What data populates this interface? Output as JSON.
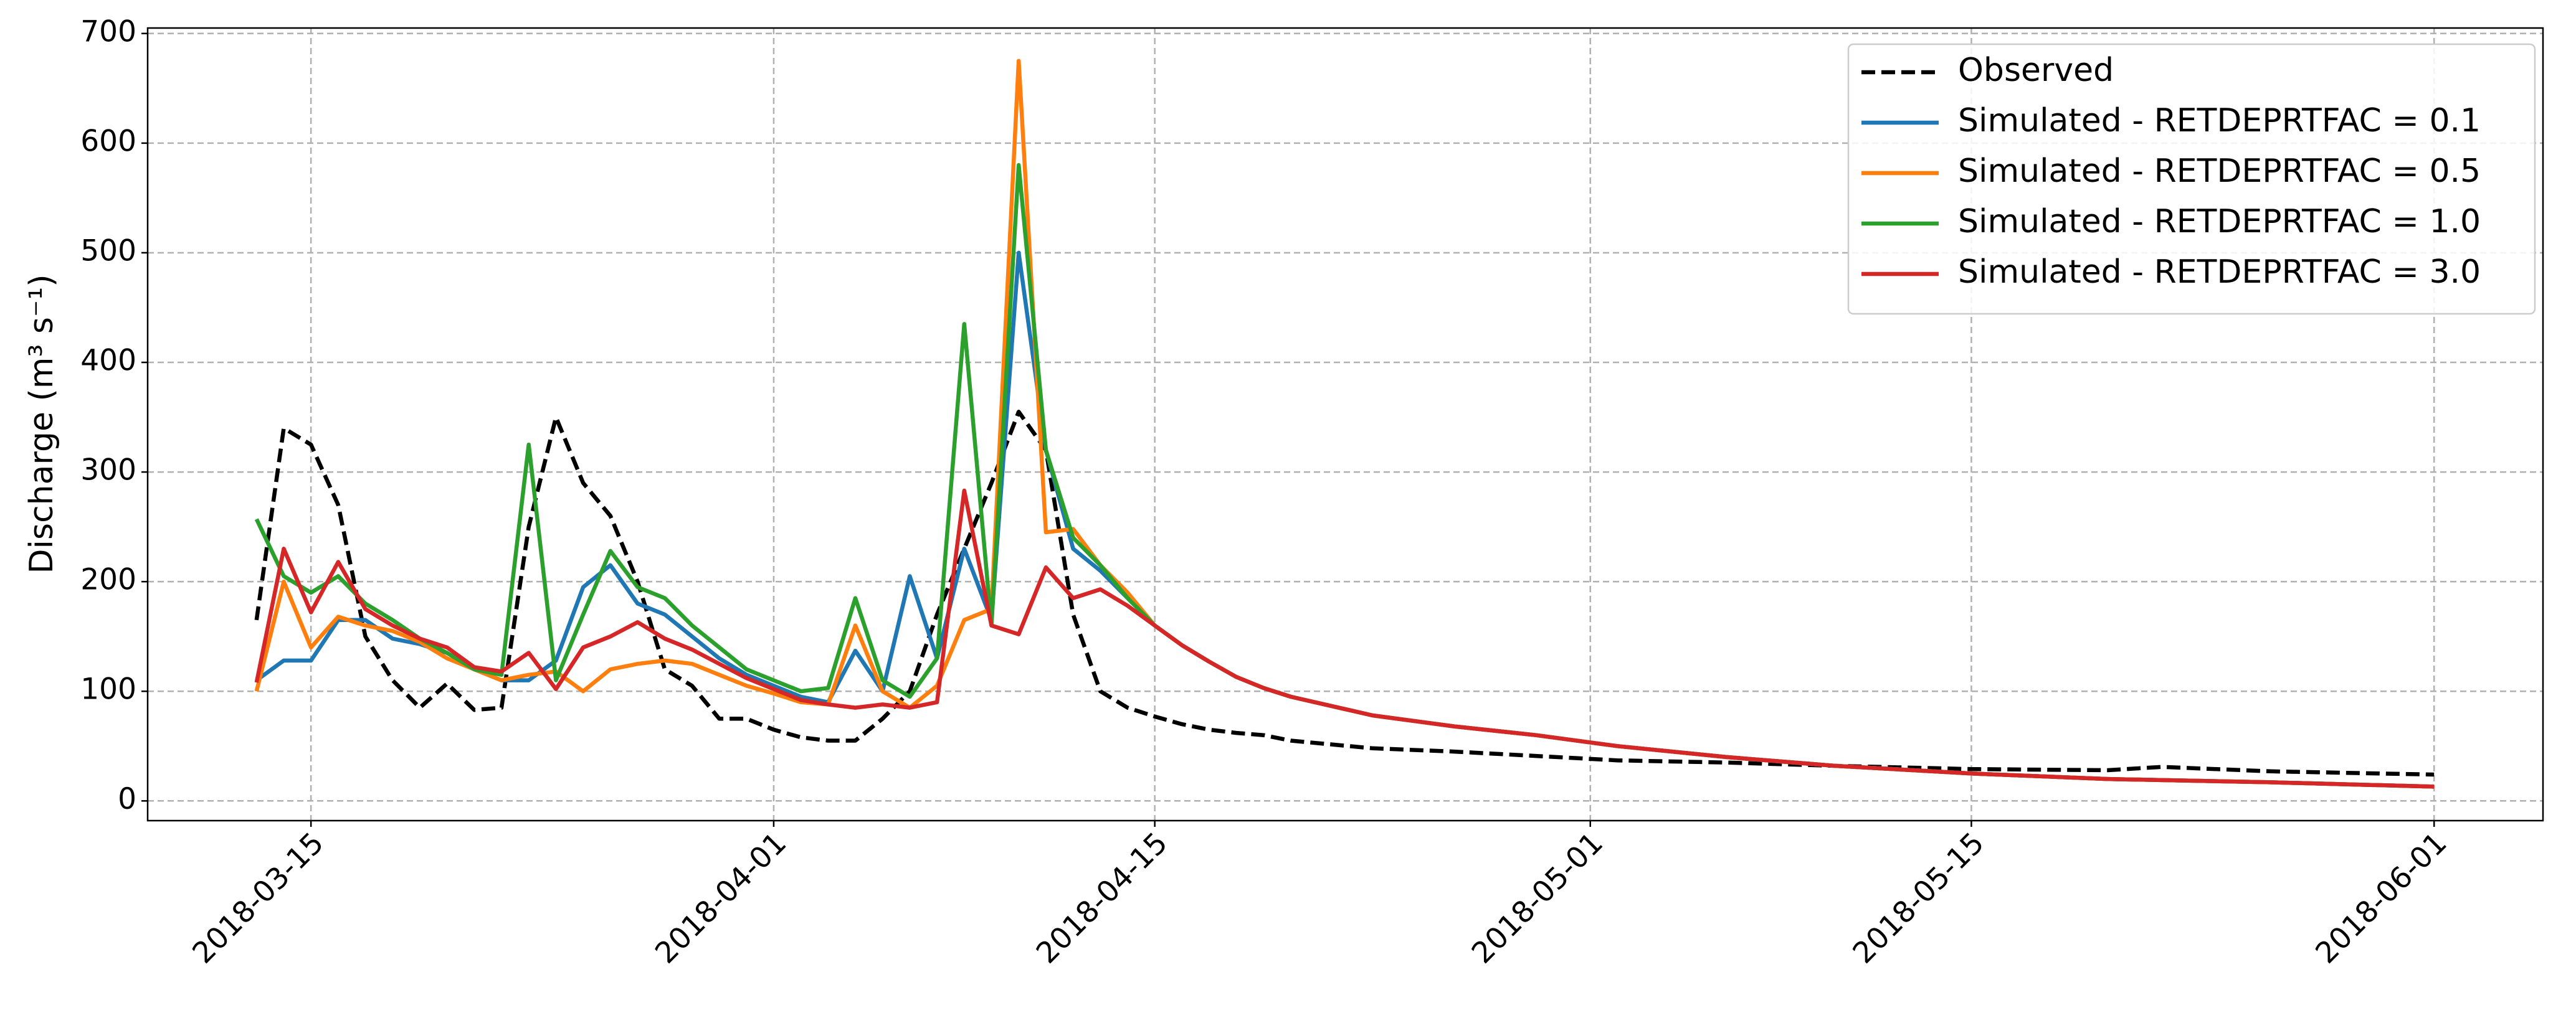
{
  "chart_data": {
    "type": "line",
    "y_label": "Discharge (m³ s⁻¹)",
    "x": [
      "2018-03-13",
      "2018-03-14",
      "2018-03-15",
      "2018-03-16",
      "2018-03-17",
      "2018-03-18",
      "2018-03-19",
      "2018-03-20",
      "2018-03-21",
      "2018-03-22",
      "2018-03-23",
      "2018-03-24",
      "2018-03-25",
      "2018-03-26",
      "2018-03-27",
      "2018-03-28",
      "2018-03-29",
      "2018-03-30",
      "2018-03-31",
      "2018-04-01",
      "2018-04-02",
      "2018-04-03",
      "2018-04-04",
      "2018-04-05",
      "2018-04-06",
      "2018-04-07",
      "2018-04-08",
      "2018-04-09",
      "2018-04-10",
      "2018-04-11",
      "2018-04-12",
      "2018-04-13",
      "2018-04-14",
      "2018-04-15",
      "2018-04-16",
      "2018-04-17",
      "2018-04-18",
      "2018-04-19",
      "2018-04-20",
      "2018-04-23",
      "2018-04-26",
      "2018-04-29",
      "2018-05-02",
      "2018-05-06",
      "2018-05-10",
      "2018-05-15",
      "2018-05-20",
      "2018-05-22",
      "2018-05-26",
      "2018-06-01"
    ],
    "series": [
      {
        "name": "Observed",
        "color": "#000000",
        "linestyle": "dashed",
        "values": [
          165,
          340,
          325,
          270,
          150,
          110,
          85,
          107,
          83,
          85,
          250,
          350,
          290,
          260,
          200,
          120,
          105,
          75,
          75,
          65,
          58,
          55,
          55,
          75,
          100,
          170,
          230,
          290,
          355,
          320,
          170,
          100,
          85,
          77,
          70,
          65,
          62,
          60,
          55,
          48,
          45,
          41,
          37,
          35,
          32,
          29,
          28,
          31,
          27,
          24
        ]
      },
      {
        "name": "Simulated - RETDEPRTFAC = 0.1",
        "color": "#1f77b4",
        "linestyle": "solid",
        "values": [
          110,
          128,
          128,
          165,
          165,
          148,
          143,
          135,
          120,
          110,
          110,
          128,
          195,
          215,
          180,
          170,
          150,
          130,
          115,
          105,
          95,
          90,
          137,
          100,
          205,
          130,
          230,
          165,
          500,
          320,
          230,
          210,
          185,
          160,
          142,
          127,
          113,
          103,
          95,
          78,
          68,
          60,
          50,
          40,
          32,
          25,
          20,
          19,
          17,
          13
        ]
      },
      {
        "name": "Simulated - RETDEPRTFAC = 0.5",
        "color": "#ff7f0e",
        "linestyle": "solid",
        "values": [
          100,
          200,
          140,
          168,
          160,
          155,
          145,
          130,
          120,
          110,
          115,
          118,
          100,
          120,
          125,
          128,
          125,
          115,
          105,
          98,
          90,
          88,
          160,
          100,
          85,
          105,
          165,
          175,
          675,
          245,
          248,
          215,
          190,
          160,
          142,
          127,
          113,
          103,
          95,
          78,
          68,
          60,
          50,
          40,
          32,
          25,
          20,
          19,
          17,
          13
        ]
      },
      {
        "name": "Simulated - RETDEPRTFAC = 1.0",
        "color": "#2ca02c",
        "linestyle": "solid",
        "values": [
          257,
          205,
          190,
          205,
          180,
          165,
          148,
          135,
          120,
          115,
          325,
          110,
          170,
          228,
          195,
          185,
          160,
          140,
          120,
          110,
          100,
          103,
          185,
          110,
          95,
          130,
          435,
          160,
          580,
          320,
          240,
          215,
          185,
          160,
          142,
          127,
          113,
          103,
          95,
          78,
          68,
          60,
          50,
          40,
          32,
          25,
          20,
          19,
          17,
          13
        ]
      },
      {
        "name": "Simulated - RETDEPRTFAC = 3.0",
        "color": "#d62728",
        "linestyle": "solid",
        "values": [
          108,
          230,
          172,
          218,
          175,
          160,
          148,
          140,
          122,
          118,
          135,
          102,
          140,
          150,
          163,
          148,
          138,
          125,
          112,
          102,
          92,
          88,
          85,
          88,
          85,
          90,
          283,
          160,
          152,
          213,
          185,
          193,
          178,
          160,
          142,
          127,
          113,
          103,
          95,
          78,
          68,
          60,
          50,
          40,
          32,
          25,
          20,
          19,
          17,
          13
        ]
      }
    ],
    "xlim": [
      "2018-03-09",
      "2018-06-05"
    ],
    "xticks": [
      "2018-03-15",
      "2018-04-01",
      "2018-04-15",
      "2018-05-01",
      "2018-05-15",
      "2018-06-01"
    ],
    "ylim": [
      -18,
      705
    ],
    "yticks": [
      0,
      100,
      200,
      300,
      400,
      500,
      600,
      700
    ],
    "grid": true,
    "legend": "upper right"
  }
}
